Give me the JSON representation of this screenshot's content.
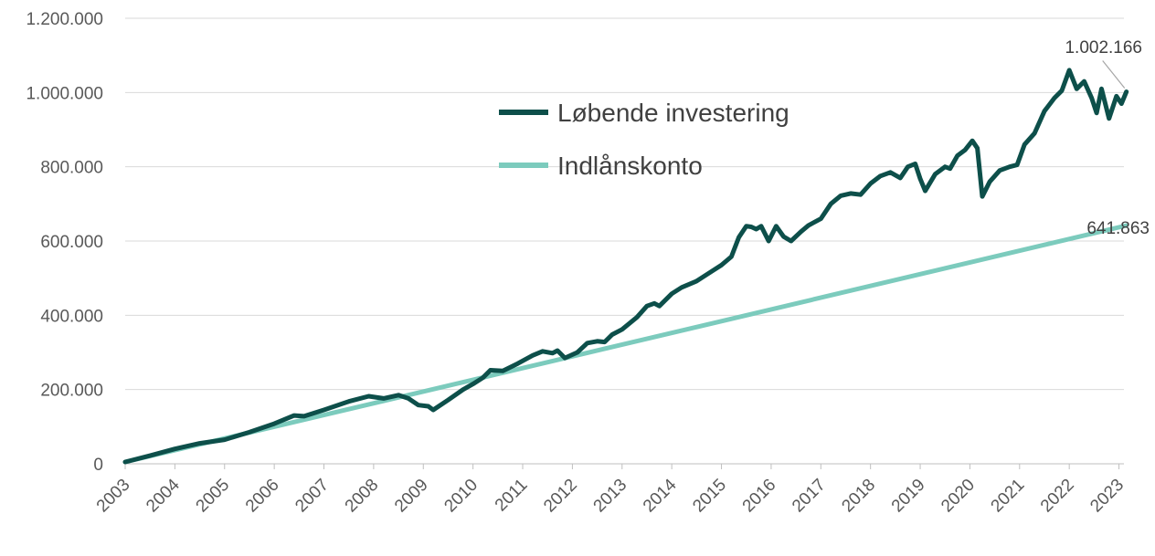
{
  "chart_data": {
    "type": "line",
    "x_axis": {
      "tick_labels": [
        "2003",
        "2004",
        "2005",
        "2006",
        "2007",
        "2008",
        "2009",
        "2010",
        "2011",
        "2012",
        "2013",
        "2014",
        "2015",
        "2016",
        "2017",
        "2018",
        "2019",
        "2020",
        "2021",
        "2022",
        "2023"
      ],
      "range": [
        2003,
        2023.1
      ]
    },
    "y_axis": {
      "tick_labels": [
        "0",
        "200.000",
        "400.000",
        "600.000",
        "800.000",
        "1.000.000",
        "1.200.000"
      ],
      "range": [
        0,
        1200000
      ]
    },
    "grid": "horizontal",
    "legend": {
      "placement": "top-center"
    },
    "series": [
      {
        "name": "Løbende investering",
        "color": "#0d4f4a",
        "end_label": "1.002.166",
        "points": [
          [
            2003.0,
            5000
          ],
          [
            2003.5,
            22000
          ],
          [
            2004.0,
            40000
          ],
          [
            2004.5,
            55000
          ],
          [
            2005.0,
            65000
          ],
          [
            2005.5,
            85000
          ],
          [
            2006.0,
            108000
          ],
          [
            2006.4,
            130000
          ],
          [
            2006.6,
            128000
          ],
          [
            2007.0,
            145000
          ],
          [
            2007.5,
            168000
          ],
          [
            2007.9,
            182000
          ],
          [
            2008.2,
            176000
          ],
          [
            2008.5,
            185000
          ],
          [
            2008.7,
            176000
          ],
          [
            2008.9,
            158000
          ],
          [
            2009.1,
            155000
          ],
          [
            2009.2,
            145000
          ],
          [
            2009.5,
            172000
          ],
          [
            2009.8,
            200000
          ],
          [
            2010.0,
            215000
          ],
          [
            2010.2,
            232000
          ],
          [
            2010.35,
            252000
          ],
          [
            2010.6,
            250000
          ],
          [
            2010.9,
            270000
          ],
          [
            2011.2,
            292000
          ],
          [
            2011.4,
            303000
          ],
          [
            2011.6,
            298000
          ],
          [
            2011.7,
            305000
          ],
          [
            2011.85,
            285000
          ],
          [
            2012.1,
            300000
          ],
          [
            2012.3,
            325000
          ],
          [
            2012.5,
            330000
          ],
          [
            2012.65,
            328000
          ],
          [
            2012.8,
            348000
          ],
          [
            2013.0,
            362000
          ],
          [
            2013.3,
            395000
          ],
          [
            2013.5,
            425000
          ],
          [
            2013.65,
            432000
          ],
          [
            2013.75,
            425000
          ],
          [
            2014.0,
            458000
          ],
          [
            2014.2,
            475000
          ],
          [
            2014.5,
            492000
          ],
          [
            2014.8,
            518000
          ],
          [
            2015.0,
            535000
          ],
          [
            2015.2,
            558000
          ],
          [
            2015.35,
            610000
          ],
          [
            2015.5,
            640000
          ],
          [
            2015.6,
            638000
          ],
          [
            2015.7,
            632000
          ],
          [
            2015.8,
            640000
          ],
          [
            2015.95,
            600000
          ],
          [
            2016.1,
            640000
          ],
          [
            2016.25,
            612000
          ],
          [
            2016.4,
            600000
          ],
          [
            2016.6,
            625000
          ],
          [
            2016.75,
            642000
          ],
          [
            2017.0,
            660000
          ],
          [
            2017.2,
            700000
          ],
          [
            2017.4,
            722000
          ],
          [
            2017.6,
            728000
          ],
          [
            2017.8,
            725000
          ],
          [
            2018.0,
            755000
          ],
          [
            2018.2,
            775000
          ],
          [
            2018.4,
            785000
          ],
          [
            2018.6,
            770000
          ],
          [
            2018.75,
            800000
          ],
          [
            2018.9,
            808000
          ],
          [
            2019.0,
            768000
          ],
          [
            2019.1,
            735000
          ],
          [
            2019.3,
            780000
          ],
          [
            2019.5,
            800000
          ],
          [
            2019.6,
            795000
          ],
          [
            2019.75,
            830000
          ],
          [
            2019.9,
            845000
          ],
          [
            2020.05,
            870000
          ],
          [
            2020.15,
            850000
          ],
          [
            2020.25,
            720000
          ],
          [
            2020.4,
            760000
          ],
          [
            2020.6,
            790000
          ],
          [
            2020.8,
            800000
          ],
          [
            2020.95,
            805000
          ],
          [
            2021.1,
            860000
          ],
          [
            2021.3,
            890000
          ],
          [
            2021.5,
            950000
          ],
          [
            2021.7,
            985000
          ],
          [
            2021.85,
            1005000
          ],
          [
            2022.0,
            1060000
          ],
          [
            2022.15,
            1010000
          ],
          [
            2022.3,
            1030000
          ],
          [
            2022.45,
            985000
          ],
          [
            2022.55,
            945000
          ],
          [
            2022.65,
            1010000
          ],
          [
            2022.8,
            930000
          ],
          [
            2022.95,
            990000
          ],
          [
            2023.05,
            970000
          ],
          [
            2023.15,
            1002166
          ]
        ]
      },
      {
        "name": "Indlånskonto",
        "color": "#7ccbbd",
        "end_label": "641.863",
        "points": [
          [
            2003.0,
            5000
          ],
          [
            2023.15,
            641863
          ]
        ]
      }
    ]
  }
}
